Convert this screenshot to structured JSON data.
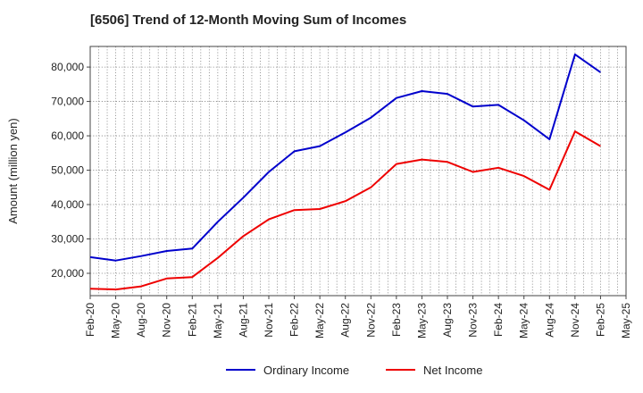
{
  "chart_data": {
    "type": "line",
    "title": "[6506]  Trend of 12-Month Moving Sum of Incomes",
    "xlabel": "",
    "ylabel": "Amount (million yen)",
    "categories": [
      "Feb-20",
      "May-20",
      "Aug-20",
      "Nov-20",
      "Feb-21",
      "May-21",
      "Aug-21",
      "Nov-21",
      "Feb-22",
      "May-22",
      "Aug-22",
      "Nov-22",
      "Feb-23",
      "May-23",
      "Aug-23",
      "Nov-23",
      "Feb-24",
      "May-24",
      "Aug-24",
      "Nov-24",
      "Feb-25",
      "May-25"
    ],
    "ylim": [
      13500,
      86000
    ],
    "yticks": [
      20000,
      30000,
      40000,
      50000,
      60000,
      70000,
      80000
    ],
    "ytick_labels": [
      "20,000",
      "30,000",
      "40,000",
      "50,000",
      "60,000",
      "70,000",
      "80,000"
    ],
    "grid": true,
    "legend_position": "bottom",
    "series": [
      {
        "name": "Ordinary Income",
        "color": "#0000cc",
        "values": [
          24700,
          23700,
          25000,
          26500,
          27200,
          35000,
          42000,
          49500,
          55500,
          57000,
          61000,
          65300,
          71000,
          73000,
          72200,
          68500,
          69000,
          64500,
          59000,
          83700,
          78500,
          null
        ]
      },
      {
        "name": "Net Income",
        "color": "#ee0000",
        "values": [
          15500,
          15300,
          16200,
          18500,
          18900,
          24500,
          30800,
          35700,
          38400,
          38700,
          41000,
          45000,
          51800,
          53100,
          52400,
          49500,
          50700,
          48300,
          44300,
          61300,
          57000,
          null
        ]
      }
    ]
  }
}
